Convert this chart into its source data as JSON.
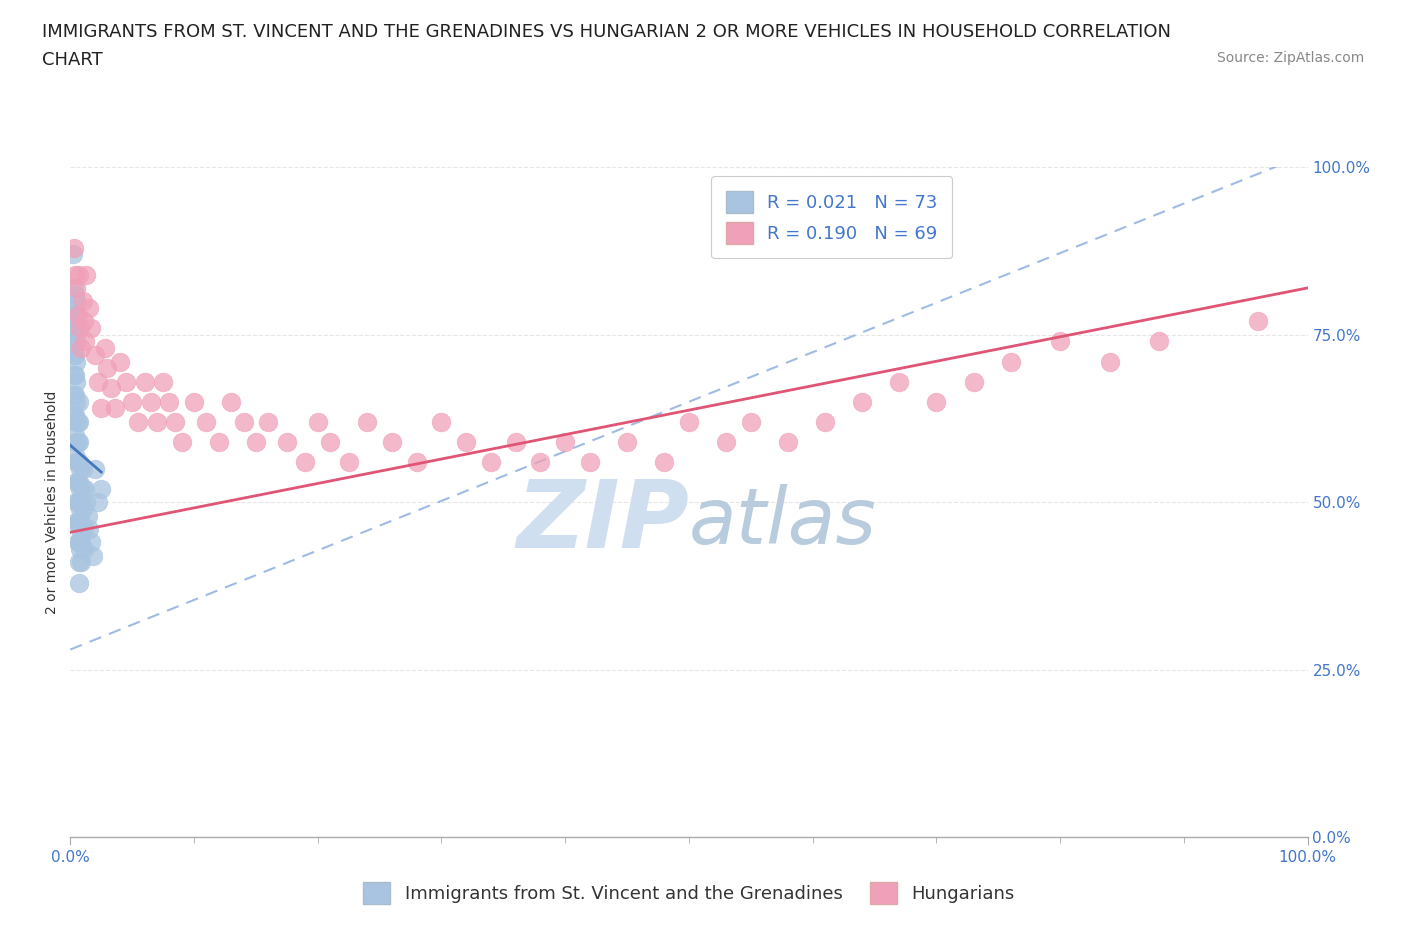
{
  "title_line1": "IMMIGRANTS FROM ST. VINCENT AND THE GRENADINES VS HUNGARIAN 2 OR MORE VEHICLES IN HOUSEHOLD CORRELATION",
  "title_line2": "CHART",
  "source_text": "Source: ZipAtlas.com",
  "ylabel": "2 or more Vehicles in Household",
  "xlim": [
    0.0,
    1.0
  ],
  "ylim": [
    0.0,
    1.0
  ],
  "xtick_labels": [
    "0.0%",
    "100.0%"
  ],
  "ytick_labels": [
    "0.0%",
    "25.0%",
    "50.0%",
    "75.0%",
    "100.0%"
  ],
  "ytick_positions": [
    0.0,
    0.25,
    0.5,
    0.75,
    1.0
  ],
  "legend_r1": "R = 0.021",
  "legend_n1": "N = 73",
  "legend_r2": "R = 0.190",
  "legend_n2": "N = 69",
  "color_blue": "#a8c4e0",
  "color_pink": "#f0a0b8",
  "color_blue_line": "#4477bb",
  "color_pink_line": "#e05575",
  "color_blue_dash": "#88aadd",
  "watermark_color": "#d0dff0",
  "background_color": "#ffffff",
  "grid_color": "#e0e0e0",
  "text_color_blue": "#4477cc",
  "title_fontsize": 13,
  "axis_label_fontsize": 10,
  "tick_fontsize": 11,
  "legend_fontsize": 13,
  "source_fontsize": 10,
  "scatter_blue_x": [
    0.002,
    0.002,
    0.002,
    0.002,
    0.003,
    0.003,
    0.003,
    0.003,
    0.003,
    0.003,
    0.003,
    0.003,
    0.004,
    0.004,
    0.004,
    0.004,
    0.004,
    0.004,
    0.004,
    0.004,
    0.004,
    0.005,
    0.005,
    0.005,
    0.005,
    0.005,
    0.005,
    0.005,
    0.005,
    0.005,
    0.005,
    0.005,
    0.005,
    0.006,
    0.006,
    0.006,
    0.006,
    0.006,
    0.006,
    0.006,
    0.007,
    0.007,
    0.007,
    0.007,
    0.007,
    0.007,
    0.007,
    0.007,
    0.007,
    0.007,
    0.008,
    0.008,
    0.008,
    0.008,
    0.008,
    0.009,
    0.009,
    0.009,
    0.009,
    0.01,
    0.01,
    0.01,
    0.011,
    0.011,
    0.012,
    0.013,
    0.014,
    0.015,
    0.017,
    0.018,
    0.02,
    0.022,
    0.025
  ],
  "scatter_blue_y": [
    0.87,
    0.78,
    0.76,
    0.73,
    0.82,
    0.79,
    0.77,
    0.74,
    0.72,
    0.69,
    0.66,
    0.63,
    0.81,
    0.78,
    0.75,
    0.72,
    0.69,
    0.66,
    0.63,
    0.6,
    0.57,
    0.8,
    0.77,
    0.74,
    0.71,
    0.68,
    0.65,
    0.62,
    0.59,
    0.56,
    0.53,
    0.5,
    0.47,
    0.62,
    0.59,
    0.56,
    0.53,
    0.5,
    0.47,
    0.44,
    0.65,
    0.62,
    0.59,
    0.56,
    0.53,
    0.5,
    0.47,
    0.44,
    0.41,
    0.38,
    0.55,
    0.52,
    0.49,
    0.46,
    0.43,
    0.5,
    0.47,
    0.44,
    0.41,
    0.55,
    0.52,
    0.49,
    0.46,
    0.43,
    0.52,
    0.5,
    0.48,
    0.46,
    0.44,
    0.42,
    0.55,
    0.5,
    0.52
  ],
  "scatter_pink_x": [
    0.003,
    0.004,
    0.005,
    0.006,
    0.007,
    0.008,
    0.009,
    0.01,
    0.011,
    0.012,
    0.013,
    0.015,
    0.017,
    0.02,
    0.022,
    0.025,
    0.028,
    0.03,
    0.033,
    0.036,
    0.04,
    0.045,
    0.05,
    0.055,
    0.06,
    0.065,
    0.07,
    0.075,
    0.08,
    0.085,
    0.09,
    0.1,
    0.11,
    0.12,
    0.13,
    0.14,
    0.15,
    0.16,
    0.175,
    0.19,
    0.2,
    0.21,
    0.225,
    0.24,
    0.26,
    0.28,
    0.3,
    0.32,
    0.34,
    0.36,
    0.38,
    0.4,
    0.42,
    0.45,
    0.48,
    0.5,
    0.53,
    0.55,
    0.58,
    0.61,
    0.64,
    0.67,
    0.7,
    0.73,
    0.76,
    0.8,
    0.84,
    0.88,
    0.96
  ],
  "scatter_pink_y": [
    0.88,
    0.84,
    0.82,
    0.78,
    0.84,
    0.76,
    0.73,
    0.8,
    0.77,
    0.74,
    0.84,
    0.79,
    0.76,
    0.72,
    0.68,
    0.64,
    0.73,
    0.7,
    0.67,
    0.64,
    0.71,
    0.68,
    0.65,
    0.62,
    0.68,
    0.65,
    0.62,
    0.68,
    0.65,
    0.62,
    0.59,
    0.65,
    0.62,
    0.59,
    0.65,
    0.62,
    0.59,
    0.62,
    0.59,
    0.56,
    0.62,
    0.59,
    0.56,
    0.62,
    0.59,
    0.56,
    0.62,
    0.59,
    0.56,
    0.59,
    0.56,
    0.59,
    0.56,
    0.59,
    0.56,
    0.62,
    0.59,
    0.62,
    0.59,
    0.62,
    0.65,
    0.68,
    0.65,
    0.68,
    0.71,
    0.74,
    0.71,
    0.74,
    0.77
  ],
  "blue_line_x": [
    0.0,
    0.025
  ],
  "blue_line_y": [
    0.585,
    0.545
  ],
  "pink_line_x": [
    0.0,
    1.0
  ],
  "pink_line_y": [
    0.455,
    0.82
  ],
  "dash_line_x": [
    0.0,
    1.0
  ],
  "dash_line_y": [
    0.28,
    1.02
  ]
}
